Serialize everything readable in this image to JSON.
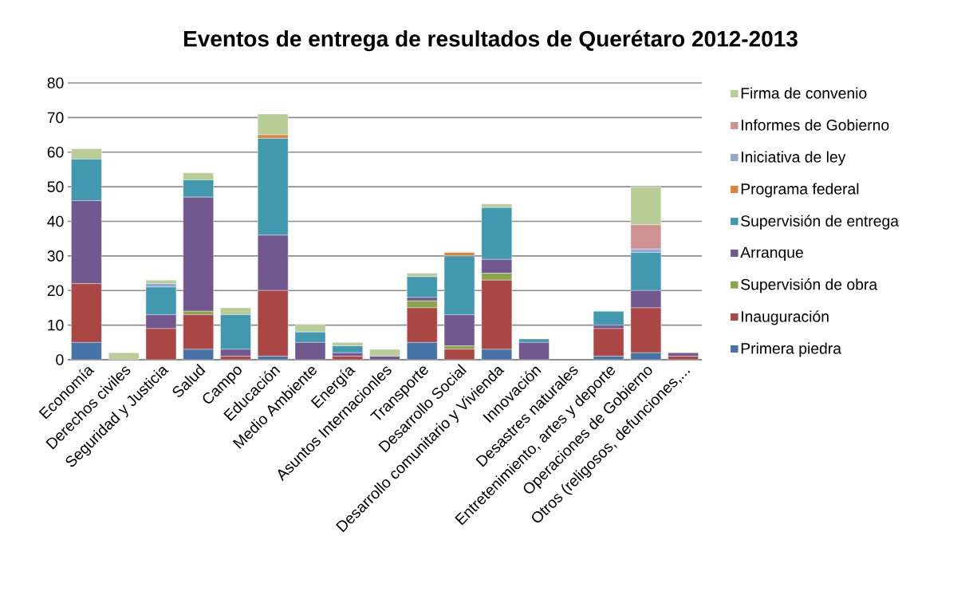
{
  "chart_data": {
    "type": "bar",
    "stacked": true,
    "title": "Eventos de entrega de resultados de Querétaro 2012-2013",
    "categories": [
      "Economía",
      "Derechos civiles",
      "Seguridad y Justicia",
      "Salud",
      "Campo",
      "Educación",
      "Medio Ambiente",
      "Energía",
      "Asuntos Internacionles",
      "Transporte",
      "Desarrollo Social",
      "Desarrollo comunitario y Vivienda",
      "Innovación",
      "Desastres naturales",
      "Entretenimiento, artes y deporte",
      "Operaciones de Gobierno",
      "Otros (religosos, defunciones,..."
    ],
    "series": [
      {
        "name": "Primera piedra",
        "color": "#4572a7",
        "values": [
          5,
          0,
          0,
          3,
          0,
          1,
          0,
          0,
          0,
          5,
          0,
          3,
          0,
          0,
          1,
          2,
          0
        ]
      },
      {
        "name": "Inauguración",
        "color": "#aa4643",
        "values": [
          17,
          0,
          9,
          10,
          1,
          19,
          0,
          1,
          0,
          10,
          3,
          20,
          0,
          0,
          8,
          13,
          1
        ]
      },
      {
        "name": "Supervisión de obra",
        "color": "#89a54e",
        "values": [
          0,
          0,
          0,
          1,
          0,
          0,
          0,
          0,
          0,
          2,
          1,
          2,
          0,
          0,
          0,
          0,
          0
        ]
      },
      {
        "name": "Arranque",
        "color": "#71588f",
        "values": [
          24,
          0,
          4,
          33,
          2,
          16,
          5,
          1,
          1,
          1,
          9,
          4,
          5,
          0,
          1,
          5,
          1
        ]
      },
      {
        "name": "Supervisión de entrega",
        "color": "#4198af",
        "values": [
          12,
          0,
          8,
          5,
          10,
          28,
          3,
          2,
          0,
          6,
          17,
          15,
          1,
          0,
          4,
          11,
          0
        ]
      },
      {
        "name": "Programa federal",
        "color": "#db843d",
        "values": [
          0,
          0,
          0,
          0,
          0,
          1,
          0,
          0,
          0,
          0,
          1,
          0,
          0,
          0,
          0,
          0,
          0
        ]
      },
      {
        "name": "Iniciativa de ley",
        "color": "#93a9cf",
        "values": [
          0,
          0,
          1,
          0,
          0,
          0,
          0,
          0,
          0,
          0,
          0,
          0,
          0,
          0,
          0,
          1,
          0
        ]
      },
      {
        "name": "Informes de Gobierno",
        "color": "#d19392",
        "values": [
          0,
          0,
          0,
          0,
          0,
          0,
          0,
          0,
          0,
          0,
          0,
          0,
          0,
          0,
          0,
          7,
          0
        ]
      },
      {
        "name": "Firma de convenio",
        "color": "#b9cd96",
        "values": [
          3,
          2,
          1,
          2,
          2,
          6,
          2,
          1,
          2,
          1,
          0,
          1,
          0,
          0,
          0,
          11,
          0
        ]
      }
    ],
    "ylim": [
      0,
      80
    ],
    "yticks": [
      0,
      10,
      20,
      30,
      40,
      50,
      60,
      70,
      80
    ],
    "grid": "y",
    "legend": "right"
  }
}
